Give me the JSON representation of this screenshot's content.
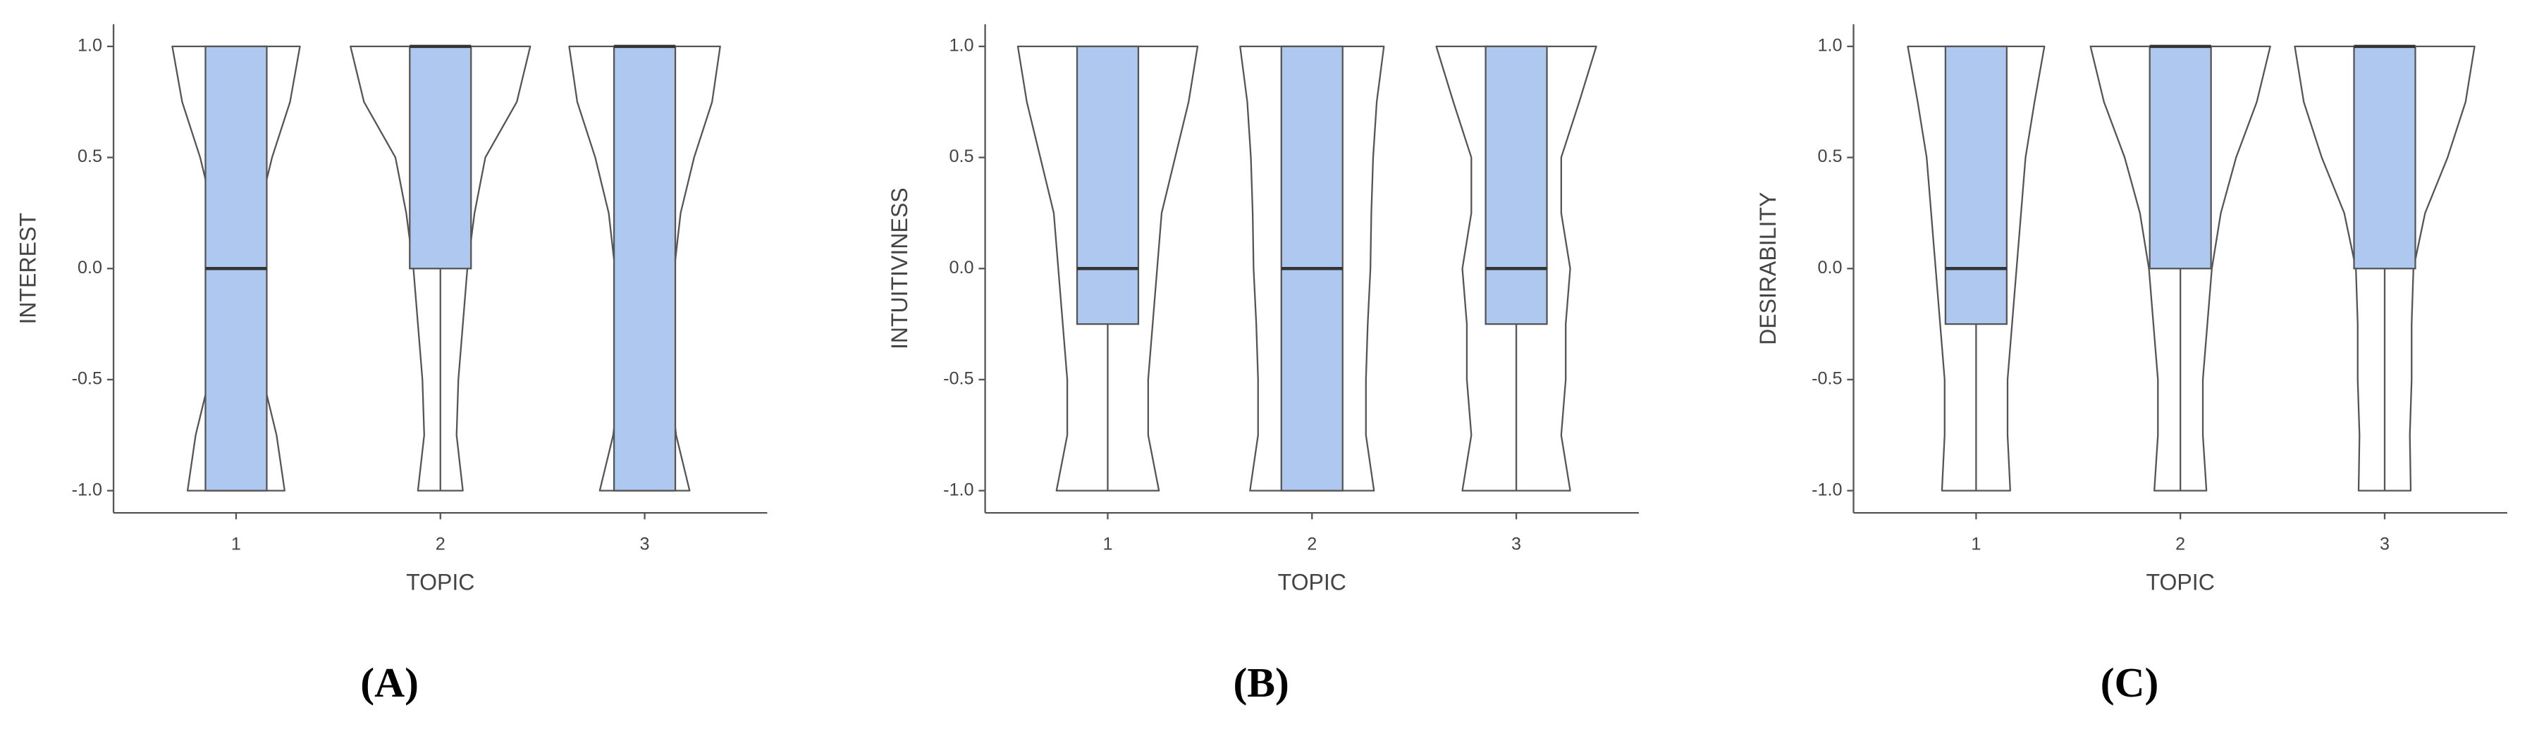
{
  "chart_data": [
    {
      "type": "violin",
      "panel_label": "(A)",
      "y_label": "INTEREST",
      "x_label": "TOPIC",
      "categories": [
        "1",
        "2",
        "3"
      ],
      "ylim": [
        -1.1,
        1.1
      ],
      "yticks": [
        {
          "value": -1,
          "label": "-1.0"
        },
        {
          "value": -0.5,
          "label": "-0.5"
        },
        {
          "value": 0,
          "label": "0.0"
        },
        {
          "value": 0.5,
          "label": "0.5"
        },
        {
          "value": 1,
          "label": "1.0"
        }
      ],
      "box_color": "#aec8f0",
      "line_color": "#555555",
      "violin_y": [
        -1,
        -0.75,
        -0.5,
        -0.25,
        0,
        0.25,
        0.5,
        0.75,
        1
      ],
      "boxes": [
        {
          "min": -1,
          "q1": -1,
          "median": 0,
          "q3": 1,
          "max": 1,
          "violin": [
            0.54,
            0.45,
            0.3,
            0.22,
            0.2,
            0.25,
            0.4,
            0.6,
            0.71
          ]
        },
        {
          "min": -1,
          "q1": 0,
          "median": 1,
          "q3": 1,
          "max": 1,
          "violin": [
            0.25,
            0.18,
            0.2,
            0.25,
            0.3,
            0.38,
            0.5,
            0.85,
            1
          ]
        },
        {
          "min": -1,
          "q1": -1,
          "median": 1,
          "q3": 1,
          "max": 1,
          "violin": [
            0.5,
            0.35,
            0.28,
            0.3,
            0.33,
            0.4,
            0.55,
            0.75,
            0.84
          ]
        }
      ]
    },
    {
      "type": "violin",
      "panel_label": "(B)",
      "y_label": "INTUITIVINESS",
      "x_label": "TOPIC",
      "categories": [
        "1",
        "2",
        "3"
      ],
      "ylim": [
        -1.1,
        1.1
      ],
      "yticks": [
        {
          "value": -1,
          "label": "-1.0"
        },
        {
          "value": -0.5,
          "label": "-0.5"
        },
        {
          "value": 0,
          "label": "0.0"
        },
        {
          "value": 0.5,
          "label": "0.5"
        },
        {
          "value": 1,
          "label": "1.0"
        }
      ],
      "box_color": "#aec8f0",
      "line_color": "#555555",
      "violin_y": [
        -1,
        -0.75,
        -0.5,
        -0.25,
        0,
        0.25,
        0.5,
        0.75,
        1
      ],
      "boxes": [
        {
          "min": -1,
          "q1": -0.25,
          "median": 0,
          "q3": 1,
          "max": 1,
          "violin": [
            0.57,
            0.45,
            0.45,
            0.5,
            0.55,
            0.6,
            0.75,
            0.9,
            1
          ]
        },
        {
          "min": -1,
          "q1": -1,
          "median": 0,
          "q3": 1,
          "max": 1,
          "violin": [
            0.69,
            0.6,
            0.6,
            0.62,
            0.65,
            0.66,
            0.68,
            0.72,
            0.8
          ]
        },
        {
          "min": -1,
          "q1": -0.25,
          "median": 0,
          "q3": 1,
          "max": 1,
          "violin": [
            0.6,
            0.5,
            0.55,
            0.55,
            0.6,
            0.5,
            0.5,
            0.7,
            0.89
          ]
        }
      ]
    },
    {
      "type": "violin",
      "panel_label": "(C)",
      "y_label": "DESIRABILITY",
      "x_label": "TOPIC",
      "categories": [
        "1",
        "2",
        "3"
      ],
      "ylim": [
        -1.1,
        1.1
      ],
      "yticks": [
        {
          "value": -1,
          "label": "-1.0"
        },
        {
          "value": -0.5,
          "label": "-0.5"
        },
        {
          "value": 0,
          "label": "0.0"
        },
        {
          "value": 0.5,
          "label": "0.5"
        },
        {
          "value": 1,
          "label": "1.0"
        }
      ],
      "box_color": "#aec8f0",
      "line_color": "#555555",
      "violin_y": [
        -1,
        -0.75,
        -0.5,
        -0.25,
        0,
        0.25,
        0.5,
        0.75,
        1
      ],
      "boxes": [
        {
          "min": -1,
          "q1": -0.25,
          "median": 0,
          "q3": 1,
          "max": 1,
          "violin": [
            0.38,
            0.35,
            0.35,
            0.4,
            0.45,
            0.5,
            0.55,
            0.65,
            0.76
          ]
        },
        {
          "min": -1,
          "q1": 0,
          "median": 1,
          "q3": 1,
          "max": 1,
          "violin": [
            0.29,
            0.25,
            0.25,
            0.3,
            0.35,
            0.45,
            0.62,
            0.85,
            1
          ]
        },
        {
          "min": -1,
          "q1": 0,
          "median": 1,
          "q3": 1,
          "max": 1,
          "violin": [
            0.29,
            0.28,
            0.3,
            0.3,
            0.32,
            0.45,
            0.7,
            0.9,
            1
          ]
        }
      ]
    }
  ]
}
